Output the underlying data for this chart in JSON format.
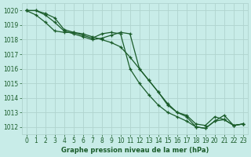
{
  "bg_color": "#c8ece8",
  "grid_color": "#b0d4ce",
  "line_color": "#1a5c2a",
  "xlabel": "Graphe pression niveau de la mer (hPa)",
  "xlim": [
    -0.5,
    23.5
  ],
  "ylim": [
    1011.5,
    1020.5
  ],
  "yticks": [
    1012,
    1013,
    1014,
    1015,
    1016,
    1017,
    1018,
    1019,
    1020
  ],
  "xticks": [
    0,
    1,
    2,
    3,
    4,
    5,
    6,
    7,
    8,
    9,
    10,
    11,
    12,
    13,
    14,
    15,
    16,
    17,
    18,
    19,
    20,
    21,
    22,
    23
  ],
  "series": [
    [
      1020.0,
      1019.7,
      1019.2,
      1018.6,
      1018.5,
      1018.5,
      1018.3,
      1018.1,
      1018.4,
      1018.5,
      1018.4,
      1016.0,
      1015.0,
      1014.2,
      1013.5,
      1013.0,
      1012.7,
      1012.4,
      1012.0,
      1011.9,
      1012.4,
      1012.8,
      1012.1,
      1012.2
    ],
    [
      1020.0,
      1020.0,
      1019.7,
      1019.2,
      1018.6,
      1018.4,
      1018.2,
      1018.0,
      1018.1,
      1018.3,
      1018.5,
      1018.4,
      1016.0,
      1015.2,
      1014.4,
      1013.5,
      1013.0,
      1012.7,
      1012.0,
      1011.9,
      1012.4,
      1012.5,
      1012.1,
      1012.2
    ],
    [
      1020.0,
      1020.0,
      1019.8,
      1019.5,
      1018.7,
      1018.5,
      1018.4,
      1018.2,
      1018.0,
      1017.8,
      1017.5,
      1016.8,
      1016.0,
      1015.2,
      1014.4,
      1013.6,
      1013.0,
      1012.8,
      1012.2,
      1012.1,
      1012.7,
      1012.5,
      1012.1,
      1012.2
    ]
  ],
  "marker_size": 3.5,
  "line_width": 0.9,
  "tick_fontsize": 5.5,
  "xlabel_fontsize": 6.0
}
